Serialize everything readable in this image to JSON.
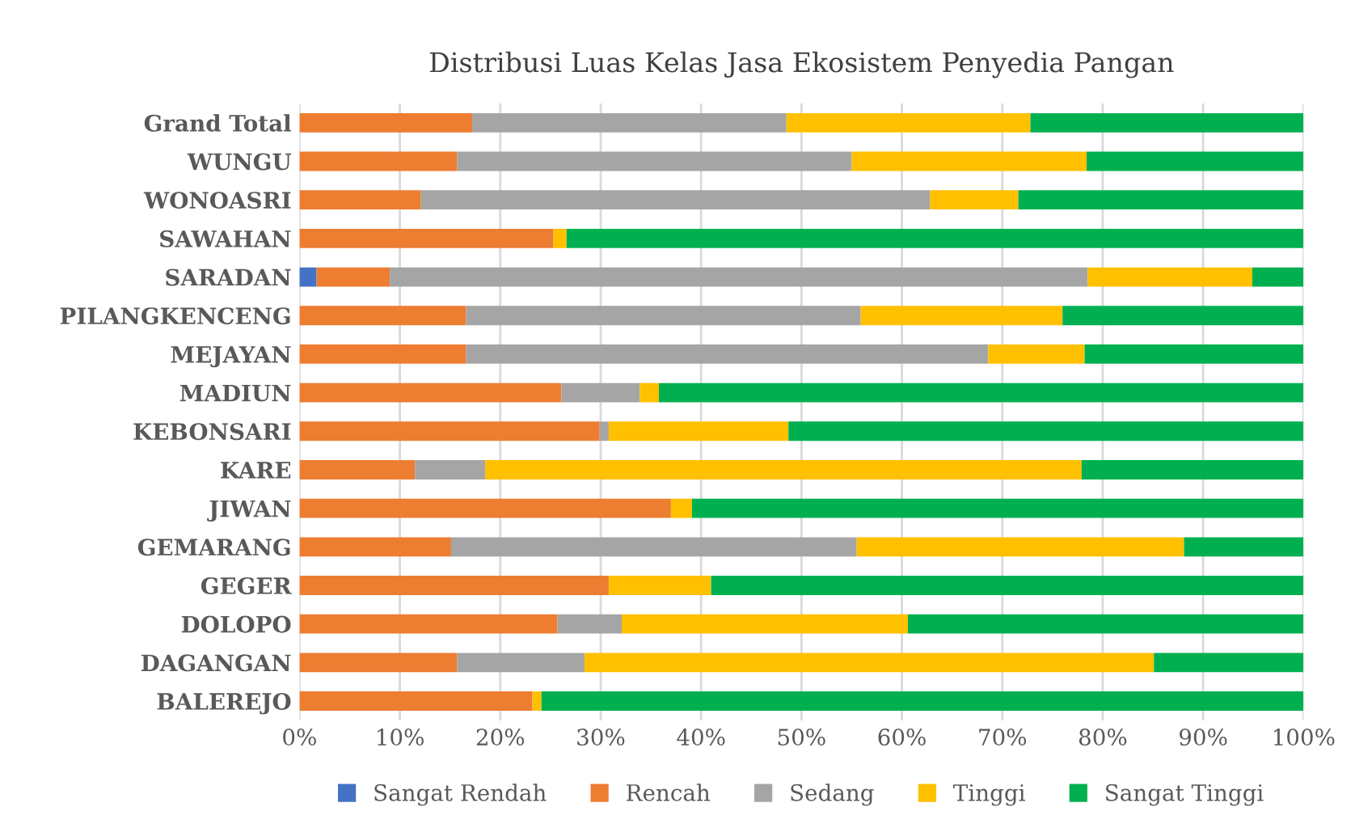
{
  "chart_data": {
    "type": "bar",
    "orientation": "horizontal",
    "stacked": true,
    "title": "Distribusi Luas Kelas Jasa Ekosistem Penyedia Pangan",
    "categories": [
      "Grand Total",
      "WUNGU",
      "WONOASRI",
      "SAWAHAN",
      "SARADAN",
      "PILANGKENCENG",
      "MEJAYAN",
      "MADIUN",
      "KEBONSARI",
      "KARE",
      "JIWAN",
      "GEMARANG",
      "GEGER",
      "DOLOPO",
      "DAGANGAN",
      "BALEREJO"
    ],
    "series": [
      {
        "name": "Sangat Rendah",
        "color": "#4472c4",
        "values": [
          0,
          0,
          0,
          0,
          1.7,
          0,
          0,
          0,
          0,
          0,
          0,
          0,
          0,
          0,
          0,
          0
        ]
      },
      {
        "name": "Rencah",
        "color": "#ed7d31",
        "values": [
          17.2,
          15.7,
          12.1,
          25.3,
          7.3,
          16.6,
          16.6,
          26.1,
          29.9,
          11.5,
          37.0,
          15.1,
          30.8,
          25.7,
          15.7,
          23.2
        ]
      },
      {
        "name": "Sedang",
        "color": "#a5a5a5",
        "values": [
          31.3,
          39.3,
          50.7,
          0,
          69.5,
          39.3,
          52.0,
          7.8,
          0.9,
          7.0,
          0,
          40.4,
          0,
          6.4,
          12.7,
          0
        ]
      },
      {
        "name": "Tinggi",
        "color": "#ffc000",
        "values": [
          24.3,
          23.4,
          8.8,
          1.3,
          16.4,
          20.1,
          9.6,
          1.9,
          17.9,
          59.4,
          2.1,
          32.6,
          10.2,
          28.5,
          56.7,
          0.9
        ]
      },
      {
        "name": "Sangat Tinggi",
        "color": "#00b050",
        "values": [
          27.2,
          21.6,
          28.4,
          73.4,
          5.1,
          24.0,
          21.8,
          64.2,
          51.3,
          22.1,
          60.9,
          11.9,
          59.0,
          39.4,
          14.9,
          75.9
        ]
      }
    ],
    "xlim": [
      0,
      100
    ],
    "xticks": [
      {
        "value": 0,
        "label": "0%"
      },
      {
        "value": 10,
        "label": "10%"
      },
      {
        "value": 20,
        "label": "20%"
      },
      {
        "value": 30,
        "label": "30%"
      },
      {
        "value": 40,
        "label": "40%"
      },
      {
        "value": 50,
        "label": "50%"
      },
      {
        "value": 60,
        "label": "60%"
      },
      {
        "value": 70,
        "label": "70%"
      },
      {
        "value": 80,
        "label": "80%"
      },
      {
        "value": 90,
        "label": "90%"
      },
      {
        "value": 100,
        "label": "100%"
      }
    ],
    "grid": "x",
    "legend": "bottom"
  }
}
